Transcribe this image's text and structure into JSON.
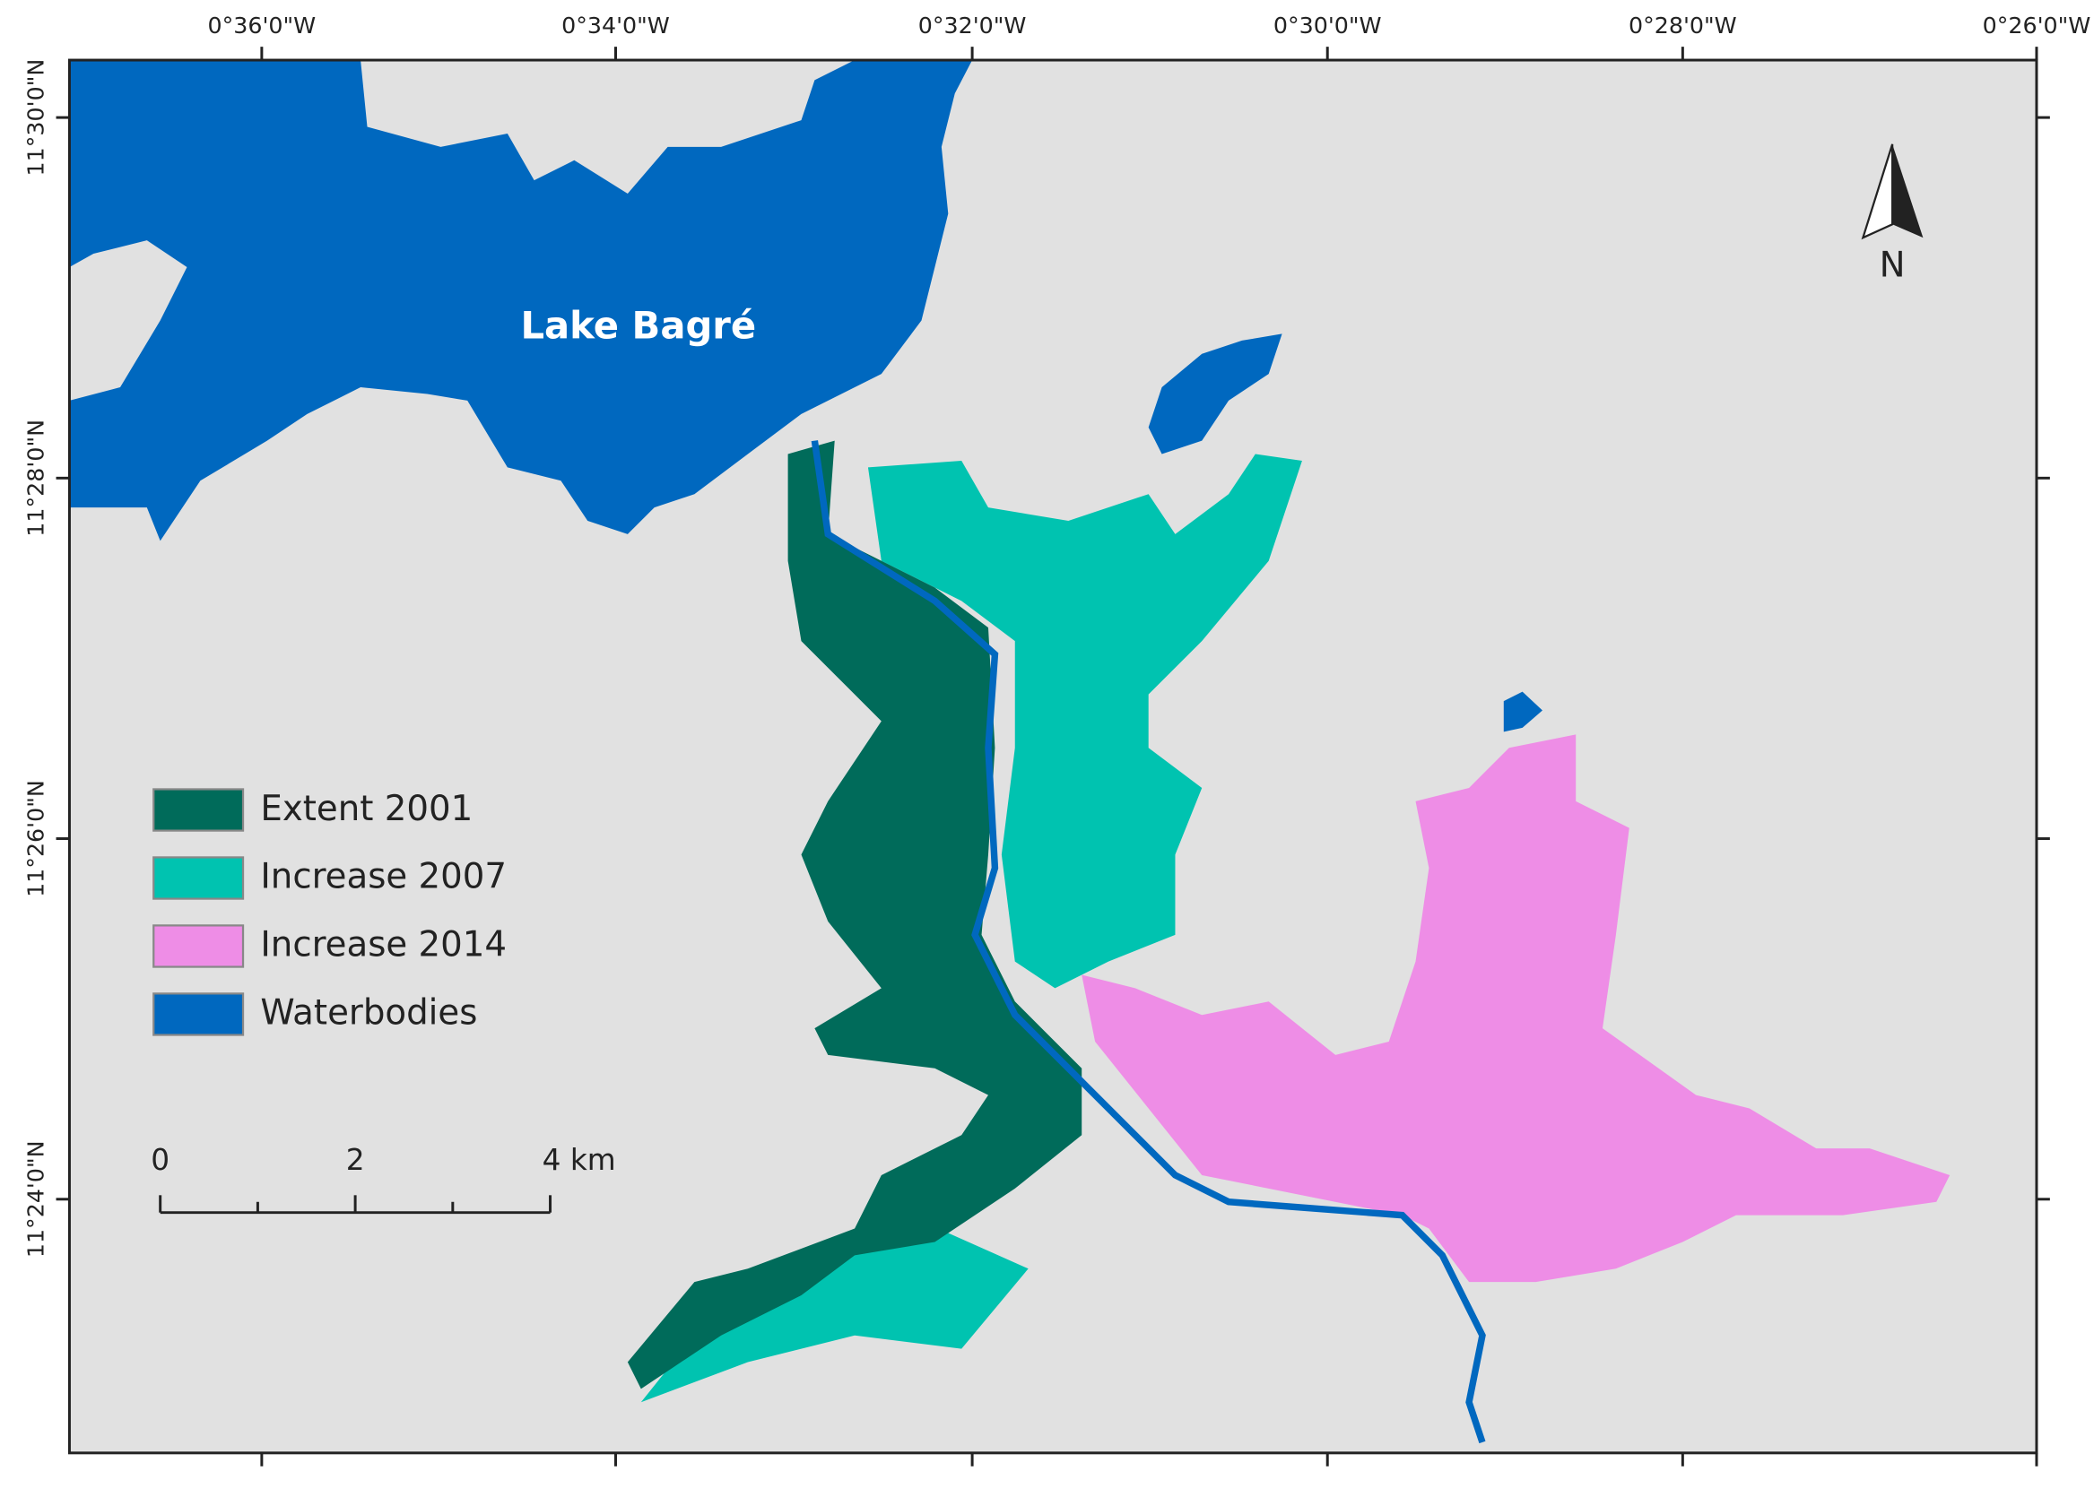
{
  "map": {
    "x_labels": [
      "0°36'0\"W",
      "0°34'0\"W",
      "0°32'0\"W",
      "0°30'0\"W",
      "0°28'0\"W",
      "0°26'0\"W"
    ],
    "y_labels": [
      "11°30'0\"N",
      "11°28'0\"N",
      "11°26'0\"N",
      "11°24'0\"N"
    ],
    "lake_label": "Lake Bagré",
    "north_label": "N",
    "legend": [
      {
        "label": "Extent 2001",
        "color": "#006b5a"
      },
      {
        "label": "Increase 2007",
        "color": "#00c3b0"
      },
      {
        "label": "Increase 2014",
        "color": "#ee8de6"
      },
      {
        "label": "Waterbodies",
        "color": "#0068bf"
      }
    ],
    "scale_bar": [
      "0",
      "2",
      "4 km"
    ]
  }
}
